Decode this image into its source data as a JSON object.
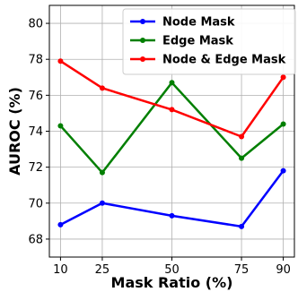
{
  "chart_data": {
    "type": "line",
    "title": "",
    "xlabel": "Mask Ratio (%)",
    "ylabel": "AUROC (%)",
    "x": [
      10,
      25,
      50,
      75,
      90
    ],
    "x_ticks": [
      "10",
      "25",
      "50",
      "75",
      "90"
    ],
    "ylim": [
      67,
      81
    ],
    "y_ticks": [
      68,
      70,
      72,
      74,
      76,
      78,
      80
    ],
    "grid": true,
    "legend_position": "top-right",
    "series": [
      {
        "name": "Node Mask",
        "color": "#0000ff",
        "values": [
          68.8,
          70.0,
          69.3,
          68.7,
          71.8
        ]
      },
      {
        "name": "Edge Mask",
        "color": "#007f00",
        "values": [
          74.3,
          71.7,
          76.7,
          72.5,
          74.4
        ]
      },
      {
        "name": "Node & Edge Mask",
        "color": "#ff0000",
        "values": [
          77.9,
          76.4,
          75.2,
          73.7,
          77.0
        ]
      }
    ]
  }
}
